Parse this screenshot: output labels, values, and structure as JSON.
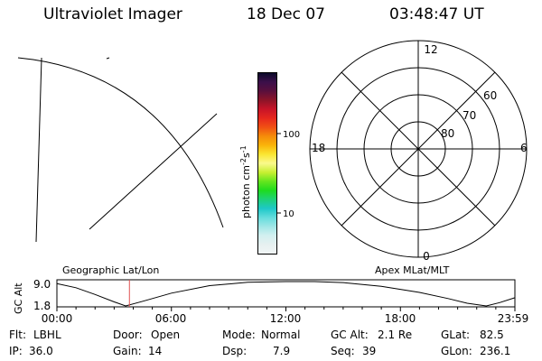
{
  "header": {
    "title": "Ultraviolet Imager",
    "date": "18 Dec 07",
    "time": "03:48:47 UT"
  },
  "colorbar": {
    "unit": "photon cm",
    "exp1": "-2",
    "sec": "s",
    "exp2": "-1",
    "ticks": [
      "100",
      "10"
    ],
    "colors": [
      "#0a0a2a",
      "#3c0f4a",
      "#5a0f3c",
      "#8c1428",
      "#c81428",
      "#e6281e",
      "#f05014",
      "#f58c0a",
      "#fab40a",
      "#fae632",
      "#fafa8c",
      "#c8f032",
      "#64e61e",
      "#1edc1e",
      "#1ed278",
      "#1ec8c8",
      "#64dcdc",
      "#a0e6e6",
      "#d2f0f0",
      "#e6f0f0",
      "#f0f5f5"
    ]
  },
  "polar": {
    "lat_labels": [
      "80",
      "70",
      "60"
    ],
    "mlt_labels": {
      "top": "12",
      "left": "18",
      "right": "6",
      "bottom": "0"
    }
  },
  "timeline": {
    "ylabel": "GC Alt",
    "yticks": [
      "9.0",
      "1.8"
    ],
    "left_title": "Geographic Lat/Lon",
    "right_title": "Apex MLat/MLT",
    "xticks": [
      "00:00",
      "06:00",
      "12:00",
      "18:00",
      "23:59"
    ]
  },
  "chart_data": {
    "type": "line",
    "xlabel": "",
    "ylabel": "GC Alt",
    "x_units": "hours UT",
    "xlim": [
      0,
      24
    ],
    "ylim": [
      1.8,
      9.0
    ],
    "x": [
      0,
      1,
      2,
      3,
      3.6,
      4.5,
      6,
      8,
      10,
      12,
      13.5,
      15,
      17,
      19,
      20.5,
      21.5,
      22.5,
      23.2,
      23.98
    ],
    "y": [
      8.4,
      7.2,
      5.2,
      3.0,
      1.8,
      3.2,
      5.6,
      7.8,
      8.8,
      9.0,
      9.0,
      8.7,
      7.6,
      5.8,
      4.0,
      2.6,
      1.8,
      2.8,
      4.2
    ],
    "current_time_marker": 3.8,
    "marker_color": "#e05050"
  },
  "footer": {
    "flt_label": "Flt:",
    "flt_value": "LBHL",
    "door_label": "Door:",
    "door_value": "Open",
    "mode_label": "Mode:",
    "mode_value": "Normal",
    "gcalt_label": "GC Alt:",
    "gcalt_value": "2.1 Re",
    "glat_label": "GLat:",
    "glat_value": "82.5",
    "ip_label": "IP:",
    "ip_value": "36.0",
    "gain_label": "Gain:",
    "gain_value": "14",
    "dsp_label": "Dsp:",
    "dsp_value": "7.9",
    "seq_label": "Seq:",
    "seq_value": "39",
    "glon_label": "GLon:",
    "glon_value": "236.1"
  }
}
